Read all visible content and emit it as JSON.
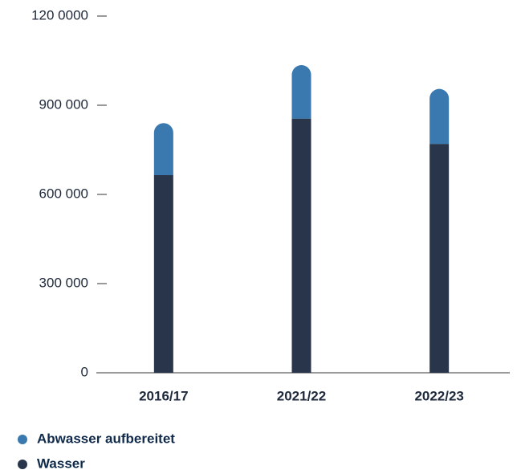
{
  "chart_data": {
    "type": "stacked_bar",
    "categories": [
      "2016/17",
      "2021/22",
      "2022/23"
    ],
    "series": [
      {
        "name": "Abwasser aufbereitet",
        "color": "#3a78b0",
        "values": [
          175000,
          180000,
          185000
        ]
      },
      {
        "name": "Wasser",
        "color": "#28354a",
        "values": [
          665000,
          855000,
          770000
        ]
      }
    ],
    "ylim": [
      0,
      1200000
    ],
    "yticks": [
      0,
      {
        "value": 300000,
        "label": "300 000"
      },
      {
        "value": 600000,
        "label": "600 000"
      },
      {
        "value": 900000,
        "label": "900 000"
      },
      {
        "value": 1200000,
        "label": "120 0000"
      }
    ]
  }
}
